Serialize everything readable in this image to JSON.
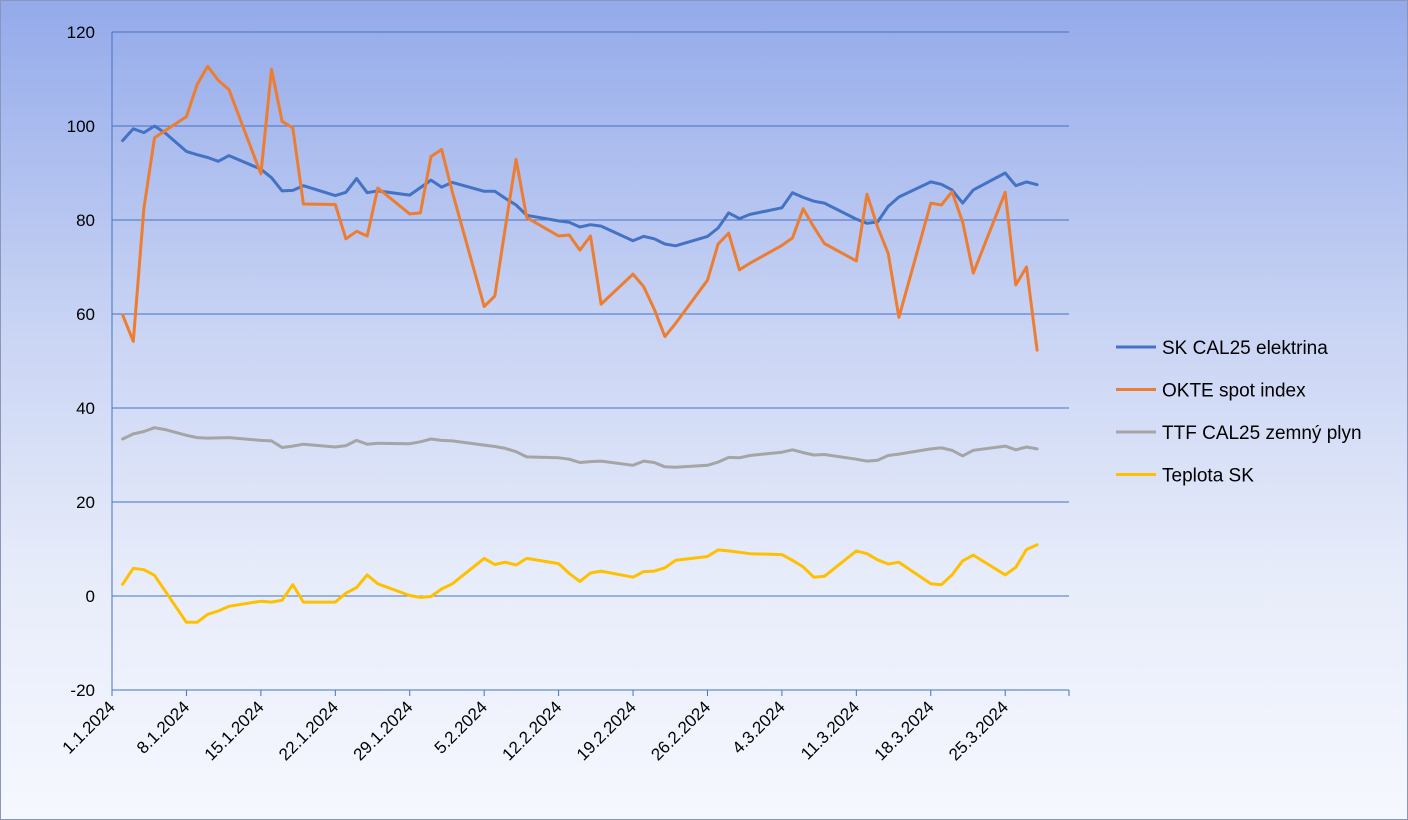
{
  "chart_data": {
    "type": "line",
    "title": "",
    "xlabel": "",
    "ylabel": "",
    "x_range": [
      "2024-01-01",
      "2024-03-31"
    ],
    "ylim": [
      -20,
      120
    ],
    "grid": true,
    "legend_position": "right",
    "x_ticks": [
      "1.1.2024",
      "8.1.2024",
      "15.1.2024",
      "22.1.2024",
      "29.1.2024",
      "5.2.2024",
      "12.2.2024",
      "19.2.2024",
      "26.2.2024",
      "4.3.2024",
      "11.3.2024",
      "18.3.2024",
      "25.3.2024"
    ],
    "x_tick_dates": [
      "2024-01-01",
      "2024-01-08",
      "2024-01-15",
      "2024-01-22",
      "2024-01-29",
      "2024-02-05",
      "2024-02-12",
      "2024-02-19",
      "2024-02-26",
      "2024-03-04",
      "2024-03-11",
      "2024-03-18",
      "2024-03-25"
    ],
    "y_ticks": [
      "-20",
      "0",
      "20",
      "40",
      "60",
      "80",
      "100",
      "120"
    ],
    "y_tick_values": [
      -20,
      0,
      20,
      40,
      60,
      80,
      100,
      120
    ],
    "series": [
      {
        "name": "SK CAL25 elektrina",
        "color": "#4472c4",
        "points": [
          [
            "2024-01-02",
            96.9
          ],
          [
            "2024-01-03",
            99.4
          ],
          [
            "2024-01-04",
            98.6
          ],
          [
            "2024-01-05",
            100.0
          ],
          [
            "2024-01-06",
            98.5
          ],
          [
            "2024-01-08",
            94.6
          ],
          [
            "2024-01-09",
            93.9
          ],
          [
            "2024-01-10",
            93.3
          ],
          [
            "2024-01-11",
            92.5
          ],
          [
            "2024-01-12",
            93.7
          ],
          [
            "2024-01-15",
            90.8
          ],
          [
            "2024-01-16",
            89.0
          ],
          [
            "2024-01-17",
            86.2
          ],
          [
            "2024-01-18",
            86.3
          ],
          [
            "2024-01-19",
            87.3
          ],
          [
            "2024-01-22",
            85.2
          ],
          [
            "2024-01-23",
            85.9
          ],
          [
            "2024-01-24",
            88.8
          ],
          [
            "2024-01-25",
            85.8
          ],
          [
            "2024-01-26",
            86.2
          ],
          [
            "2024-01-29",
            85.3
          ],
          [
            "2024-01-30",
            86.9
          ],
          [
            "2024-01-31",
            88.5
          ],
          [
            "2024-02-01",
            87.0
          ],
          [
            "2024-02-02",
            88.0
          ],
          [
            "2024-02-05",
            86.1
          ],
          [
            "2024-02-06",
            86.1
          ],
          [
            "2024-02-07",
            84.6
          ],
          [
            "2024-02-08",
            83.2
          ],
          [
            "2024-02-09",
            81.0
          ],
          [
            "2024-02-12",
            79.8
          ],
          [
            "2024-02-13",
            79.5
          ],
          [
            "2024-02-14",
            78.5
          ],
          [
            "2024-02-15",
            79.0
          ],
          [
            "2024-02-16",
            78.7
          ],
          [
            "2024-02-19",
            75.6
          ],
          [
            "2024-02-20",
            76.5
          ],
          [
            "2024-02-21",
            76.0
          ],
          [
            "2024-02-22",
            74.9
          ],
          [
            "2024-02-23",
            74.5
          ],
          [
            "2024-02-26",
            76.5
          ],
          [
            "2024-02-27",
            78.3
          ],
          [
            "2024-02-28",
            81.5
          ],
          [
            "2024-02-29",
            80.3
          ],
          [
            "2024-03-01",
            81.2
          ],
          [
            "2024-03-04",
            82.6
          ],
          [
            "2024-03-05",
            85.8
          ],
          [
            "2024-03-06",
            84.8
          ],
          [
            "2024-03-07",
            84.0
          ],
          [
            "2024-03-08",
            83.6
          ],
          [
            "2024-03-11",
            80.2
          ],
          [
            "2024-03-12",
            79.3
          ],
          [
            "2024-03-13",
            79.6
          ],
          [
            "2024-03-14",
            82.9
          ],
          [
            "2024-03-15",
            84.9
          ],
          [
            "2024-03-18",
            88.1
          ],
          [
            "2024-03-19",
            87.6
          ],
          [
            "2024-03-20",
            86.4
          ],
          [
            "2024-03-21",
            83.6
          ],
          [
            "2024-03-22",
            86.4
          ],
          [
            "2024-03-25",
            90.0
          ],
          [
            "2024-03-26",
            87.3
          ],
          [
            "2024-03-27",
            88.1
          ],
          [
            "2024-03-28",
            87.5
          ]
        ]
      },
      {
        "name": "OKTE spot index",
        "color": "#ed7d31",
        "points": [
          [
            "2024-01-02",
            59.8
          ],
          [
            "2024-01-03",
            54.2
          ],
          [
            "2024-01-04",
            82.5
          ],
          [
            "2024-01-05",
            97.5
          ],
          [
            "2024-01-08",
            102.0
          ],
          [
            "2024-01-09",
            108.8
          ],
          [
            "2024-01-10",
            112.7
          ],
          [
            "2024-01-11",
            109.7
          ],
          [
            "2024-01-12",
            107.7
          ],
          [
            "2024-01-15",
            89.8
          ],
          [
            "2024-01-16",
            112.1
          ],
          [
            "2024-01-17",
            101.0
          ],
          [
            "2024-01-18",
            99.6
          ],
          [
            "2024-01-19",
            83.4
          ],
          [
            "2024-01-22",
            83.3
          ],
          [
            "2024-01-23",
            76.0
          ],
          [
            "2024-01-24",
            77.6
          ],
          [
            "2024-01-25",
            76.6
          ],
          [
            "2024-01-26",
            86.8
          ],
          [
            "2024-01-29",
            81.3
          ],
          [
            "2024-01-30",
            81.5
          ],
          [
            "2024-01-31",
            93.5
          ],
          [
            "2024-02-01",
            95.0
          ],
          [
            "2024-02-02",
            86.0
          ],
          [
            "2024-02-05",
            61.6
          ],
          [
            "2024-02-06",
            63.8
          ],
          [
            "2024-02-07",
            78.5
          ],
          [
            "2024-02-08",
            92.9
          ],
          [
            "2024-02-09",
            80.5
          ],
          [
            "2024-02-12",
            76.6
          ],
          [
            "2024-02-13",
            76.8
          ],
          [
            "2024-02-14",
            73.6
          ],
          [
            "2024-02-15",
            76.6
          ],
          [
            "2024-02-16",
            62.1
          ],
          [
            "2024-02-19",
            68.5
          ],
          [
            "2024-02-20",
            65.8
          ],
          [
            "2024-02-21",
            61.0
          ],
          [
            "2024-02-22",
            55.2
          ],
          [
            "2024-02-23",
            58.0
          ],
          [
            "2024-02-26",
            67.2
          ],
          [
            "2024-02-27",
            74.9
          ],
          [
            "2024-02-28",
            77.2
          ],
          [
            "2024-02-29",
            69.4
          ],
          [
            "2024-03-01",
            70.8
          ],
          [
            "2024-03-04",
            74.6
          ],
          [
            "2024-03-05",
            76.2
          ],
          [
            "2024-03-06",
            82.4
          ],
          [
            "2024-03-07",
            78.5
          ],
          [
            "2024-03-08",
            75.0
          ],
          [
            "2024-03-11",
            71.3
          ],
          [
            "2024-03-12",
            85.5
          ],
          [
            "2024-03-13",
            78.5
          ],
          [
            "2024-03-14",
            72.9
          ],
          [
            "2024-03-15",
            59.3
          ],
          [
            "2024-03-18",
            83.6
          ],
          [
            "2024-03-19",
            83.2
          ],
          [
            "2024-03-20",
            86.0
          ],
          [
            "2024-03-21",
            79.5
          ],
          [
            "2024-03-22",
            68.7
          ],
          [
            "2024-03-25",
            85.9
          ],
          [
            "2024-03-26",
            66.2
          ],
          [
            "2024-03-27",
            70.0
          ],
          [
            "2024-03-28",
            52.3
          ]
        ]
      },
      {
        "name": "TTF CAL25 zemný plyn",
        "color": "#a5a5a5",
        "points": [
          [
            "2024-01-02",
            33.4
          ],
          [
            "2024-01-03",
            34.5
          ],
          [
            "2024-01-04",
            35.0
          ],
          [
            "2024-01-05",
            35.8
          ],
          [
            "2024-01-06",
            35.4
          ],
          [
            "2024-01-08",
            34.2
          ],
          [
            "2024-01-09",
            33.7
          ],
          [
            "2024-01-10",
            33.6
          ],
          [
            "2024-01-12",
            33.7
          ],
          [
            "2024-01-15",
            33.1
          ],
          [
            "2024-01-16",
            33.0
          ],
          [
            "2024-01-17",
            31.6
          ],
          [
            "2024-01-18",
            31.9
          ],
          [
            "2024-01-19",
            32.3
          ],
          [
            "2024-01-22",
            31.7
          ],
          [
            "2024-01-23",
            32.0
          ],
          [
            "2024-01-24",
            33.1
          ],
          [
            "2024-01-25",
            32.3
          ],
          [
            "2024-01-26",
            32.5
          ],
          [
            "2024-01-29",
            32.4
          ],
          [
            "2024-01-30",
            32.8
          ],
          [
            "2024-01-31",
            33.4
          ],
          [
            "2024-02-01",
            33.1
          ],
          [
            "2024-02-02",
            33.0
          ],
          [
            "2024-02-05",
            32.1
          ],
          [
            "2024-02-06",
            31.8
          ],
          [
            "2024-02-07",
            31.4
          ],
          [
            "2024-02-08",
            30.7
          ],
          [
            "2024-02-09",
            29.6
          ],
          [
            "2024-02-12",
            29.4
          ],
          [
            "2024-02-13",
            29.1
          ],
          [
            "2024-02-14",
            28.4
          ],
          [
            "2024-02-15",
            28.6
          ],
          [
            "2024-02-16",
            28.7
          ],
          [
            "2024-02-19",
            27.8
          ],
          [
            "2024-02-20",
            28.7
          ],
          [
            "2024-02-21",
            28.4
          ],
          [
            "2024-02-22",
            27.5
          ],
          [
            "2024-02-23",
            27.4
          ],
          [
            "2024-02-26",
            27.8
          ],
          [
            "2024-02-27",
            28.5
          ],
          [
            "2024-02-28",
            29.5
          ],
          [
            "2024-02-29",
            29.4
          ],
          [
            "2024-03-01",
            29.9
          ],
          [
            "2024-03-04",
            30.6
          ],
          [
            "2024-03-05",
            31.1
          ],
          [
            "2024-03-06",
            30.5
          ],
          [
            "2024-03-07",
            30.0
          ],
          [
            "2024-03-08",
            30.1
          ],
          [
            "2024-03-11",
            29.1
          ],
          [
            "2024-03-12",
            28.7
          ],
          [
            "2024-03-13",
            28.9
          ],
          [
            "2024-03-14",
            29.9
          ],
          [
            "2024-03-15",
            30.2
          ],
          [
            "2024-03-18",
            31.3
          ],
          [
            "2024-03-19",
            31.5
          ],
          [
            "2024-03-20",
            31.0
          ],
          [
            "2024-03-21",
            29.8
          ],
          [
            "2024-03-22",
            31.0
          ],
          [
            "2024-03-25",
            31.9
          ],
          [
            "2024-03-26",
            31.1
          ],
          [
            "2024-03-27",
            31.7
          ],
          [
            "2024-03-28",
            31.3
          ]
        ]
      },
      {
        "name": "Teplota SK",
        "color": "#ffc000",
        "points": [
          [
            "2024-01-02",
            2.5
          ],
          [
            "2024-01-03",
            5.9
          ],
          [
            "2024-01-04",
            5.6
          ],
          [
            "2024-01-05",
            4.4
          ],
          [
            "2024-01-08",
            -5.6
          ],
          [
            "2024-01-09",
            -5.6
          ],
          [
            "2024-01-10",
            -3.9
          ],
          [
            "2024-01-11",
            -3.2
          ],
          [
            "2024-01-12",
            -2.2
          ],
          [
            "2024-01-15",
            -1.1
          ],
          [
            "2024-01-16",
            -1.3
          ],
          [
            "2024-01-17",
            -0.9
          ],
          [
            "2024-01-18",
            2.4
          ],
          [
            "2024-01-19",
            -1.3
          ],
          [
            "2024-01-22",
            -1.3
          ],
          [
            "2024-01-23",
            0.6
          ],
          [
            "2024-01-24",
            1.8
          ],
          [
            "2024-01-25",
            4.5
          ],
          [
            "2024-01-26",
            2.6
          ],
          [
            "2024-01-29",
            0.1
          ],
          [
            "2024-01-30",
            -0.3
          ],
          [
            "2024-01-31",
            -0.1
          ],
          [
            "2024-02-01",
            1.5
          ],
          [
            "2024-02-02",
            2.6
          ],
          [
            "2024-02-05",
            8.0
          ],
          [
            "2024-02-06",
            6.7
          ],
          [
            "2024-02-07",
            7.2
          ],
          [
            "2024-02-08",
            6.6
          ],
          [
            "2024-02-09",
            8.0
          ],
          [
            "2024-02-12",
            6.9
          ],
          [
            "2024-02-13",
            4.8
          ],
          [
            "2024-02-14",
            3.1
          ],
          [
            "2024-02-15",
            4.9
          ],
          [
            "2024-02-16",
            5.3
          ],
          [
            "2024-02-19",
            4.0
          ],
          [
            "2024-02-20",
            5.2
          ],
          [
            "2024-02-21",
            5.3
          ],
          [
            "2024-02-22",
            6.0
          ],
          [
            "2024-02-23",
            7.6
          ],
          [
            "2024-02-26",
            8.4
          ],
          [
            "2024-02-27",
            9.8
          ],
          [
            "2024-02-28",
            9.6
          ],
          [
            "2024-03-01",
            9.0
          ],
          [
            "2024-03-04",
            8.8
          ],
          [
            "2024-03-05",
            7.6
          ],
          [
            "2024-03-06",
            6.2
          ],
          [
            "2024-03-07",
            4.0
          ],
          [
            "2024-03-08",
            4.2
          ],
          [
            "2024-03-11",
            9.6
          ],
          [
            "2024-03-12",
            9.0
          ],
          [
            "2024-03-13",
            7.7
          ],
          [
            "2024-03-14",
            6.8
          ],
          [
            "2024-03-15",
            7.2
          ],
          [
            "2024-03-18",
            2.6
          ],
          [
            "2024-03-19",
            2.4
          ],
          [
            "2024-03-20",
            4.5
          ],
          [
            "2024-03-21",
            7.5
          ],
          [
            "2024-03-22",
            8.7
          ],
          [
            "2024-03-25",
            4.5
          ],
          [
            "2024-03-26",
            6.1
          ],
          [
            "2024-03-27",
            9.9
          ],
          [
            "2024-03-28",
            10.9
          ]
        ]
      }
    ]
  }
}
